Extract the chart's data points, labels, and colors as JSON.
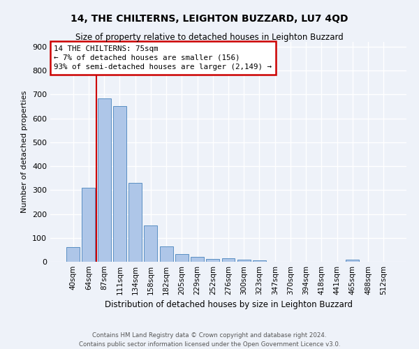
{
  "title": "14, THE CHILTERNS, LEIGHTON BUZZARD, LU7 4QD",
  "subtitle": "Size of property relative to detached houses in Leighton Buzzard",
  "xlabel": "Distribution of detached houses by size in Leighton Buzzard",
  "ylabel": "Number of detached properties",
  "categories": [
    "40sqm",
    "64sqm",
    "87sqm",
    "111sqm",
    "134sqm",
    "158sqm",
    "182sqm",
    "205sqm",
    "229sqm",
    "252sqm",
    "276sqm",
    "300sqm",
    "323sqm",
    "347sqm",
    "370sqm",
    "394sqm",
    "418sqm",
    "441sqm",
    "465sqm",
    "488sqm",
    "512sqm"
  ],
  "values": [
    62,
    310,
    682,
    651,
    330,
    152,
    63,
    32,
    20,
    13,
    14,
    9,
    6,
    0,
    0,
    0,
    0,
    0,
    9,
    0,
    0
  ],
  "bar_color": "#aec6e8",
  "bar_edge_color": "#5a8fc3",
  "property_line_label": "14 THE CHILTERNS: 75sqm",
  "annotation_line1": "← 7% of detached houses are smaller (156)",
  "annotation_line2": "93% of semi-detached houses are larger (2,149) →",
  "annotation_box_color": "#ffffff",
  "annotation_box_edge": "#cc0000",
  "vline_color": "#cc0000",
  "background_color": "#eef2f9",
  "grid_color": "#ffffff",
  "ylim": [
    0,
    920
  ],
  "yticks": [
    0,
    100,
    200,
    300,
    400,
    500,
    600,
    700,
    800,
    900
  ],
  "vline_x": 1.48,
  "footer_line1": "Contains HM Land Registry data © Crown copyright and database right 2024.",
  "footer_line2": "Contains public sector information licensed under the Open Government Licence v3.0."
}
